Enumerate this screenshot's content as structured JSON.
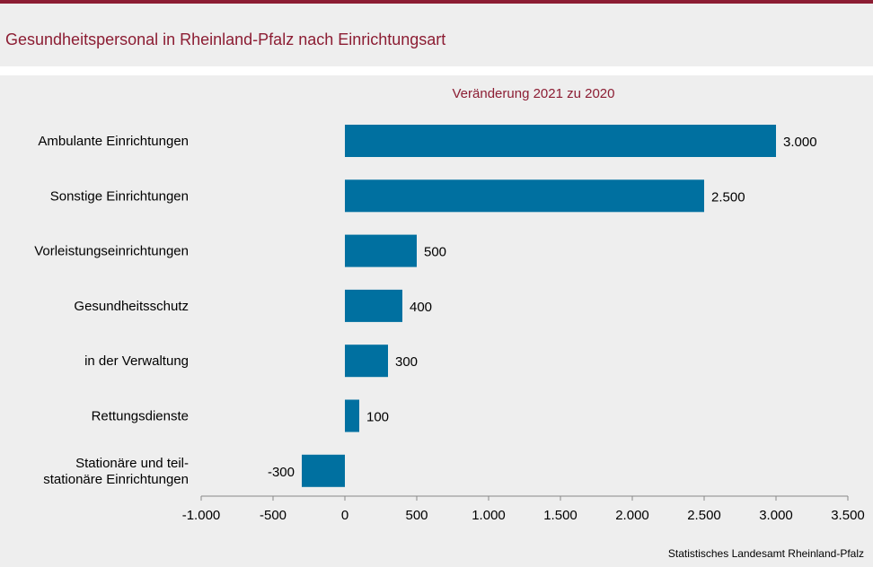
{
  "title": "Gesundheitspersonal in Rheinland-Pfalz nach Einrichtungsart",
  "subtitle": "Veränderung 2021 zu 2020",
  "source": "Statistisches Landesamt Rheinland-Pfalz",
  "colors": {
    "bar": "#0070a0",
    "title": "#8c1d33",
    "axis": "#888888"
  },
  "chart_data": {
    "type": "bar",
    "orientation": "horizontal",
    "categories": [
      "Ambulante Einrichtungen",
      "Sonstige Einrichtungen",
      "Vorleistungseinrichtungen",
      "Gesundheitsschutz",
      "in der Verwaltung",
      "Rettungsdienste",
      "Stationäre und teil-\nstationäre Einrichtungen"
    ],
    "values": [
      3000,
      2500,
      500,
      400,
      300,
      100,
      -300
    ],
    "value_labels": [
      "3.000",
      "2.500",
      "500",
      "400",
      "300",
      "100",
      "-300"
    ],
    "xlim": [
      -1000,
      3500
    ],
    "xticks": [
      -1000,
      -500,
      0,
      500,
      1000,
      1500,
      2000,
      2500,
      3000,
      3500
    ],
    "xtick_labels": [
      "-1.000",
      "-500",
      "0",
      "500",
      "1.000",
      "1.500",
      "2.000",
      "2.500",
      "3.000",
      "3.500"
    ],
    "title": "Veränderung 2021 zu 2020",
    "grid": false,
    "legend": "none"
  }
}
